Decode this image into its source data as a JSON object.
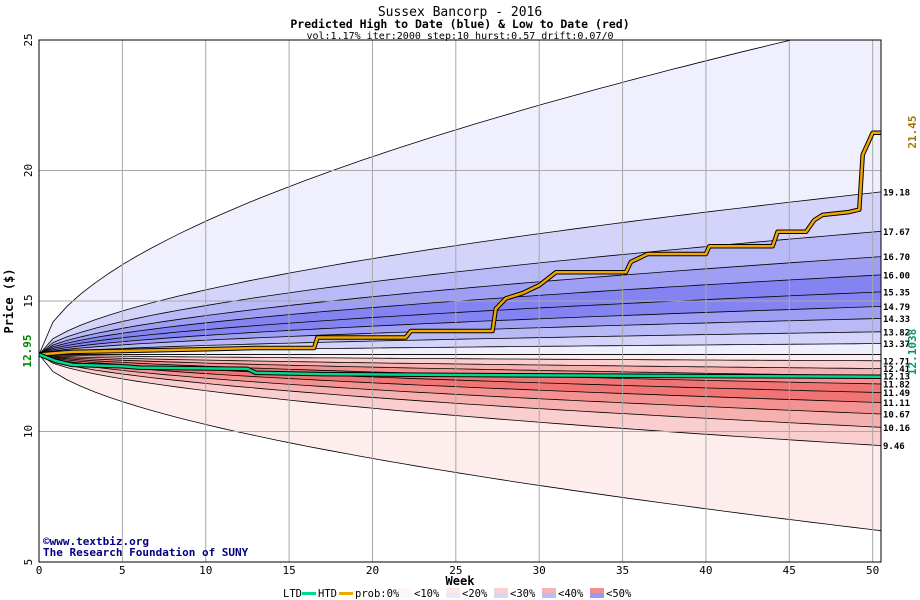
{
  "header": {
    "title": "Sussex Bancorp - 2016",
    "subtitle": "Predicted High to Date (blue) &  Low to Date (red)",
    "params": "vol:1.17% iter:2000 step:10 hurst:0.57 drift:0.07/0"
  },
  "credit": {
    "site": "©www.textbiz.org",
    "org": "The Research Foundation of SUNY"
  },
  "colors": {
    "blue_band": "#7878f0",
    "red_band": "#f06868",
    "htd_line": "#f0a800",
    "ltd_line": "#00d890",
    "grid": "#a8a8a8",
    "start_label": "#008800",
    "last_high_label": "#a07800",
    "last_low_label": "#009868"
  },
  "legend": {
    "ltd": "LTD",
    "htd": "HTD",
    "prob_prefix": "prob:0%",
    "items": [
      "<10%",
      "<20%",
      "<30%",
      "<40%",
      "<50%"
    ]
  },
  "chart_data": {
    "type": "area",
    "title": "Sussex Bancorp - 2016",
    "xlabel": "Week",
    "ylabel": "Price ($)",
    "xlim": [
      0,
      50.5
    ],
    "ylim": [
      5,
      25
    ],
    "x_ticks": [
      0,
      5,
      10,
      15,
      20,
      25,
      30,
      35,
      40,
      45,
      50
    ],
    "y_ticks": [
      5,
      10,
      15,
      20,
      25
    ],
    "start_price": 12.95,
    "start_price_label": "12.95",
    "high_quantiles_end": [
      {
        "value": 25.8,
        "label": ""
      },
      {
        "value": 19.18,
        "label": "19.18"
      },
      {
        "value": 17.67,
        "label": "17.67"
      },
      {
        "value": 16.7,
        "label": "16.70"
      },
      {
        "value": 16.0,
        "label": "16.00"
      },
      {
        "value": 15.35,
        "label": "15.35"
      },
      {
        "value": 14.79,
        "label": "14.79"
      },
      {
        "value": 14.33,
        "label": "14.33"
      },
      {
        "value": 13.82,
        "label": "13.82"
      },
      {
        "value": 13.37,
        "label": "13.37"
      },
      {
        "value": 12.95,
        "label": ""
      }
    ],
    "low_quantiles_end": [
      {
        "value": 12.71,
        "label": "12.71"
      },
      {
        "value": 12.41,
        "label": "12.41"
      },
      {
        "value": 12.13,
        "label": "12.13"
      },
      {
        "value": 11.82,
        "label": "11.82"
      },
      {
        "value": 11.49,
        "label": "11.49"
      },
      {
        "value": 11.11,
        "label": "11.11"
      },
      {
        "value": 10.67,
        "label": "10.67"
      },
      {
        "value": 10.16,
        "label": "10.16"
      },
      {
        "value": 9.46,
        "label": "9.46"
      },
      {
        "value": 6.2,
        "label": ""
      }
    ],
    "series": [
      {
        "name": "HTD",
        "last_label": "21.45",
        "points": [
          [
            0,
            12.95
          ],
          [
            2,
            13.05
          ],
          [
            6,
            13.1
          ],
          [
            10,
            13.15
          ],
          [
            13,
            13.2
          ],
          [
            16.5,
            13.2
          ],
          [
            16.7,
            13.6
          ],
          [
            22,
            13.6
          ],
          [
            22.3,
            13.85
          ],
          [
            27.2,
            13.85
          ],
          [
            27.4,
            14.7
          ],
          [
            28,
            15.1
          ],
          [
            29,
            15.3
          ],
          [
            30,
            15.6
          ],
          [
            31,
            16.1
          ],
          [
            35.2,
            16.1
          ],
          [
            35.5,
            16.5
          ],
          [
            36.5,
            16.8
          ],
          [
            40,
            16.8
          ],
          [
            40.2,
            17.1
          ],
          [
            44,
            17.1
          ],
          [
            44.3,
            17.65
          ],
          [
            46,
            17.65
          ],
          [
            46.5,
            18.1
          ],
          [
            47,
            18.3
          ],
          [
            48.5,
            18.4
          ],
          [
            49.2,
            18.5
          ],
          [
            49.4,
            20.6
          ],
          [
            50,
            21.45
          ],
          [
            50.5,
            21.45
          ]
        ]
      },
      {
        "name": "LTD",
        "last_label": "12.1038",
        "points": [
          [
            0,
            12.95
          ],
          [
            1,
            12.7
          ],
          [
            2,
            12.55
          ],
          [
            5,
            12.5
          ],
          [
            6,
            12.45
          ],
          [
            12.5,
            12.4
          ],
          [
            13,
            12.25
          ],
          [
            17,
            12.2
          ],
          [
            30,
            12.15
          ],
          [
            42,
            12.12
          ],
          [
            50.5,
            12.1
          ]
        ]
      }
    ]
  }
}
